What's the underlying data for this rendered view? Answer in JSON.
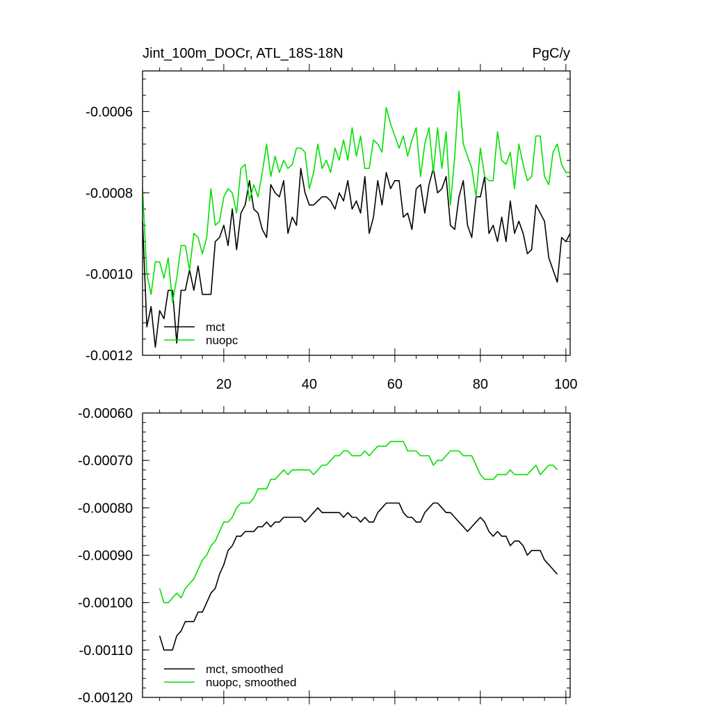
{
  "chart_data": [
    {
      "type": "line",
      "title": "Jint_100m_DOCr, ATL_18S-18N",
      "units": "PgC/y",
      "xlim": [
        1,
        101
      ],
      "ylim": [
        -0.0012,
        -0.0005
      ],
      "xticks": [
        20,
        40,
        60,
        80,
        100
      ],
      "xtick_labels": [
        "20",
        "40",
        "60",
        "80",
        "100"
      ],
      "yticks": [
        -0.0012,
        -0.001,
        -0.0008,
        -0.0006
      ],
      "ytick_labels": [
        "-0.0012",
        "-0.0010",
        "-0.0008",
        "-0.0006"
      ],
      "legend_position": "bottom-left",
      "x": [
        1,
        2,
        3,
        4,
        5,
        6,
        7,
        8,
        9,
        10,
        11,
        12,
        13,
        14,
        15,
        16,
        17,
        18,
        19,
        20,
        21,
        22,
        23,
        24,
        25,
        26,
        27,
        28,
        29,
        30,
        31,
        32,
        33,
        34,
        35,
        36,
        37,
        38,
        39,
        40,
        41,
        42,
        43,
        44,
        45,
        46,
        47,
        48,
        49,
        50,
        51,
        52,
        53,
        54,
        55,
        56,
        57,
        58,
        59,
        60,
        61,
        62,
        63,
        64,
        65,
        66,
        67,
        68,
        69,
        70,
        71,
        72,
        73,
        74,
        75,
        76,
        77,
        78,
        79,
        80,
        81,
        82,
        83,
        84,
        85,
        86,
        87,
        88,
        89,
        90,
        91,
        92,
        93,
        94,
        95,
        96,
        97,
        98,
        99,
        100,
        101
      ],
      "series": [
        {
          "name": "mct",
          "color": "#000000",
          "values": [
            -0.00087,
            -0.00113,
            -0.00108,
            -0.00118,
            -0.00109,
            -0.00111,
            -0.00104,
            -0.00104,
            -0.00117,
            -0.00104,
            -0.00104,
            -0.00099,
            -0.00104,
            -0.00098,
            -0.00105,
            -0.00105,
            -0.00105,
            -0.00092,
            -0.00091,
            -0.00088,
            -0.00093,
            -0.00084,
            -0.00094,
            -0.00085,
            -0.00083,
            -0.00077,
            -0.00084,
            -0.00085,
            -0.00089,
            -0.00091,
            -0.00078,
            -0.0008,
            -0.00081,
            -0.00077,
            -0.0009,
            -0.00086,
            -0.00088,
            -0.00074,
            -0.0008,
            -0.00083,
            -0.00083,
            -0.00082,
            -0.00081,
            -0.00081,
            -0.00082,
            -0.00084,
            -0.0008,
            -0.00082,
            -0.00077,
            -0.00084,
            -0.00082,
            -0.00085,
            -0.00076,
            -0.0009,
            -0.00086,
            -0.00077,
            -0.00083,
            -0.00075,
            -0.00079,
            -0.00077,
            -0.00077,
            -0.00086,
            -0.00085,
            -0.00089,
            -0.00079,
            -0.00078,
            -0.00085,
            -0.00078,
            -0.00074,
            -0.0008,
            -0.00079,
            -0.00076,
            -0.00088,
            -0.00089,
            -0.00081,
            -0.00077,
            -0.00088,
            -0.00091,
            -0.00081,
            -0.00081,
            -0.00076,
            -0.0009,
            -0.00088,
            -0.00092,
            -0.00086,
            -0.00092,
            -0.00082,
            -0.0009,
            -0.00087,
            -0.0009,
            -0.00095,
            -0.00094,
            -0.00083,
            -0.00085,
            -0.00087,
            -0.00096,
            -0.00099,
            -0.00102,
            -0.00091,
            -0.00092,
            -0.0009
          ]
        },
        {
          "name": "nuopc",
          "color": "#00e000",
          "values": [
            -0.00079,
            -0.001,
            -0.00105,
            -0.00097,
            -0.00097,
            -0.00101,
            -0.00096,
            -0.00107,
            -0.00101,
            -0.00093,
            -0.00093,
            -0.00099,
            -0.0009,
            -0.00091,
            -0.00095,
            -0.00091,
            -0.00079,
            -0.00088,
            -0.00087,
            -0.00081,
            -0.00079,
            -0.0008,
            -0.00085,
            -0.00074,
            -0.00073,
            -0.00082,
            -0.00078,
            -0.00081,
            -0.00075,
            -0.00068,
            -0.00076,
            -0.00071,
            -0.00075,
            -0.00072,
            -0.00074,
            -0.00073,
            -0.00069,
            -0.00069,
            -0.0007,
            -0.00079,
            -0.00075,
            -0.00068,
            -0.00074,
            -0.00072,
            -0.00075,
            -0.00069,
            -0.00072,
            -0.00067,
            -0.00072,
            -0.00064,
            -0.00071,
            -0.00066,
            -0.00074,
            -0.00074,
            -0.00067,
            -0.00068,
            -0.0007,
            -0.00059,
            -0.00063,
            -0.00066,
            -0.00069,
            -0.00066,
            -0.00071,
            -0.00067,
            -0.00064,
            -0.00076,
            -0.00068,
            -0.00064,
            -0.00075,
            -0.00064,
            -0.00074,
            -0.00065,
            -0.00083,
            -0.00071,
            -0.00055,
            -0.00068,
            -0.00071,
            -0.00074,
            -0.00081,
            -0.00069,
            -0.00076,
            -0.00077,
            -0.00077,
            -0.00065,
            -0.00072,
            -0.00073,
            -0.0007,
            -0.00079,
            -0.00068,
            -0.00073,
            -0.00077,
            -0.00076,
            -0.00066,
            -0.00066,
            -0.00076,
            -0.00078,
            -0.0007,
            -0.00068,
            -0.00073,
            -0.00075,
            -0.00075
          ]
        }
      ]
    },
    {
      "type": "line",
      "xlim": [
        1,
        101
      ],
      "ylim": [
        -0.0012,
        -0.0006
      ],
      "xticks": [
        20,
        40,
        60,
        80,
        100
      ],
      "yticks": [
        -0.0012,
        -0.0011,
        -0.001,
        -0.0009,
        -0.0008,
        -0.0007,
        -0.0006
      ],
      "ytick_labels": [
        "-0.00120",
        "-0.00110",
        "-0.00100",
        "-0.00090",
        "-0.00080",
        "-0.00070",
        "-0.00060"
      ],
      "legend_position": "bottom-left",
      "x": [
        5,
        6,
        7,
        8,
        9,
        10,
        11,
        12,
        13,
        14,
        15,
        16,
        17,
        18,
        19,
        20,
        21,
        22,
        23,
        24,
        25,
        26,
        27,
        28,
        29,
        30,
        31,
        32,
        33,
        34,
        35,
        36,
        37,
        38,
        39,
        40,
        41,
        42,
        43,
        44,
        45,
        46,
        47,
        48,
        49,
        50,
        51,
        52,
        53,
        54,
        55,
        56,
        57,
        58,
        59,
        60,
        61,
        62,
        63,
        64,
        65,
        66,
        67,
        68,
        69,
        70,
        71,
        72,
        73,
        74,
        75,
        76,
        77,
        78,
        79,
        80,
        81,
        82,
        83,
        84,
        85,
        86,
        87,
        88,
        89,
        90,
        91,
        92,
        93,
        94,
        95,
        96,
        97,
        98
      ],
      "series": [
        {
          "name": "mct, smoothed",
          "color": "#000000",
          "values": [
            -0.00107,
            -0.0011,
            -0.0011,
            -0.0011,
            -0.00107,
            -0.00106,
            -0.00104,
            -0.00104,
            -0.00104,
            -0.00102,
            -0.00102,
            -0.001,
            -0.00098,
            -0.00097,
            -0.00094,
            -0.00092,
            -0.00089,
            -0.00088,
            -0.00086,
            -0.00086,
            -0.00085,
            -0.00085,
            -0.00085,
            -0.00084,
            -0.00084,
            -0.00083,
            -0.00084,
            -0.00083,
            -0.00083,
            -0.00082,
            -0.00082,
            -0.00082,
            -0.00082,
            -0.00082,
            -0.00083,
            -0.00082,
            -0.00081,
            -0.0008,
            -0.00081,
            -0.00081,
            -0.00081,
            -0.00081,
            -0.00081,
            -0.00082,
            -0.00081,
            -0.00082,
            -0.00082,
            -0.00083,
            -0.00082,
            -0.00083,
            -0.00083,
            -0.00081,
            -0.0008,
            -0.00079,
            -0.00079,
            -0.00079,
            -0.00079,
            -0.00081,
            -0.00082,
            -0.00082,
            -0.00083,
            -0.00083,
            -0.00081,
            -0.0008,
            -0.00079,
            -0.00079,
            -0.0008,
            -0.00081,
            -0.00081,
            -0.00082,
            -0.00083,
            -0.00084,
            -0.00085,
            -0.00084,
            -0.00083,
            -0.00082,
            -0.00083,
            -0.00085,
            -0.00086,
            -0.00085,
            -0.00086,
            -0.00086,
            -0.00088,
            -0.00087,
            -0.00087,
            -0.00088,
            -0.0009,
            -0.00089,
            -0.00089,
            -0.00089,
            -0.00091,
            -0.00092,
            -0.00093,
            -0.00094
          ]
        },
        {
          "name": "nuopc, smoothed",
          "color": "#00e000",
          "values": [
            -0.00097,
            -0.001,
            -0.001,
            -0.00099,
            -0.00098,
            -0.00099,
            -0.00097,
            -0.00096,
            -0.00095,
            -0.00093,
            -0.00091,
            -0.0009,
            -0.00088,
            -0.00087,
            -0.00085,
            -0.00083,
            -0.00083,
            -0.00082,
            -0.0008,
            -0.00079,
            -0.00079,
            -0.00079,
            -0.00078,
            -0.00076,
            -0.00076,
            -0.00076,
            -0.00074,
            -0.00074,
            -0.00073,
            -0.00072,
            -0.00073,
            -0.00072,
            -0.00072,
            -0.00072,
            -0.00072,
            -0.00072,
            -0.00073,
            -0.00072,
            -0.00071,
            -0.00071,
            -0.0007,
            -0.00069,
            -0.00069,
            -0.00068,
            -0.00068,
            -0.00069,
            -0.00069,
            -0.00069,
            -0.00068,
            -0.00069,
            -0.00068,
            -0.00067,
            -0.00067,
            -0.00067,
            -0.00066,
            -0.00066,
            -0.00066,
            -0.00066,
            -0.00068,
            -0.00068,
            -0.00068,
            -0.00069,
            -0.00069,
            -0.00069,
            -0.00071,
            -0.0007,
            -0.0007,
            -0.00069,
            -0.00068,
            -0.00068,
            -0.00068,
            -0.00069,
            -0.00069,
            -0.00069,
            -0.00071,
            -0.00073,
            -0.00074,
            -0.00074,
            -0.00074,
            -0.00073,
            -0.00073,
            -0.00073,
            -0.00072,
            -0.00073,
            -0.00073,
            -0.00073,
            -0.00073,
            -0.00072,
            -0.00071,
            -0.00073,
            -0.00072,
            -0.00071,
            -0.00071,
            -0.00072
          ]
        }
      ]
    }
  ]
}
